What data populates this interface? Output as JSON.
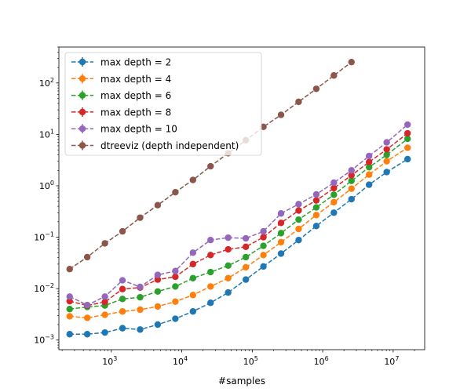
{
  "chart_data": {
    "type": "line",
    "title": "",
    "xlabel": "#samples",
    "ylabel": "",
    "xscale": "log",
    "yscale": "log",
    "xlim": [
      180,
      28000000
    ],
    "ylim": [
      0.00065,
      500
    ],
    "grid": false,
    "legend_position": "upper left",
    "x_tick_labels": [
      "10^3",
      "10^4",
      "10^5",
      "10^6",
      "10^7"
    ],
    "y_tick_labels": [
      "10^-3",
      "10^-2",
      "10^-1",
      "10^0",
      "10^1",
      "10^2"
    ],
    "x": [
      256,
      455,
      810,
      1440,
      2560,
      4550,
      8100,
      14400,
      25600,
      45500,
      81000,
      144000,
      256000,
      455000,
      810000,
      1440000,
      2560000,
      4550000,
      8100000,
      16000000
    ],
    "series": [
      {
        "name": "max depth = 2",
        "color": "#1f77b4",
        "values": [
          0.0013,
          0.0013,
          0.0014,
          0.0017,
          0.0016,
          0.002,
          0.0026,
          0.0036,
          0.0053,
          0.0084,
          0.015,
          0.027,
          0.048,
          0.088,
          0.165,
          0.3,
          0.55,
          1.05,
          1.85,
          3.3
        ]
      },
      {
        "name": "max depth = 4",
        "color": "#ff7f0e",
        "values": [
          0.0029,
          0.0027,
          0.0031,
          0.0036,
          0.0039,
          0.0045,
          0.0056,
          0.0075,
          0.011,
          0.016,
          0.026,
          0.045,
          0.08,
          0.145,
          0.27,
          0.48,
          0.88,
          1.65,
          3.0,
          5.5
        ]
      },
      {
        "name": "max depth = 6",
        "color": "#2ca02c",
        "values": [
          0.004,
          0.0044,
          0.0047,
          0.0063,
          0.0068,
          0.0088,
          0.011,
          0.016,
          0.021,
          0.028,
          0.041,
          0.068,
          0.12,
          0.22,
          0.38,
          0.67,
          1.25,
          2.3,
          4.0,
          8.2
        ]
      },
      {
        "name": "max depth = 8",
        "color": "#d62728",
        "values": [
          0.0057,
          0.0047,
          0.0055,
          0.0098,
          0.0105,
          0.015,
          0.017,
          0.03,
          0.045,
          0.058,
          0.065,
          0.1,
          0.19,
          0.33,
          0.52,
          0.9,
          1.6,
          2.9,
          5.1,
          10.5
        ]
      },
      {
        "name": "max depth = 10",
        "color": "#9467bd",
        "values": [
          0.007,
          0.0048,
          0.007,
          0.0145,
          0.0108,
          0.0185,
          0.022,
          0.05,
          0.088,
          0.098,
          0.095,
          0.13,
          0.29,
          0.44,
          0.68,
          1.15,
          2.0,
          3.8,
          7.0,
          15.5
        ]
      },
      {
        "name": "dtreeviz (depth independent)",
        "color": "#8c564b",
        "values": [
          0.024,
          0.041,
          0.076,
          0.13,
          0.24,
          0.42,
          0.75,
          1.3,
          2.4,
          4.3,
          7.7,
          14,
          24,
          43,
          77,
          140,
          255,
          null,
          null,
          null
        ]
      }
    ]
  }
}
